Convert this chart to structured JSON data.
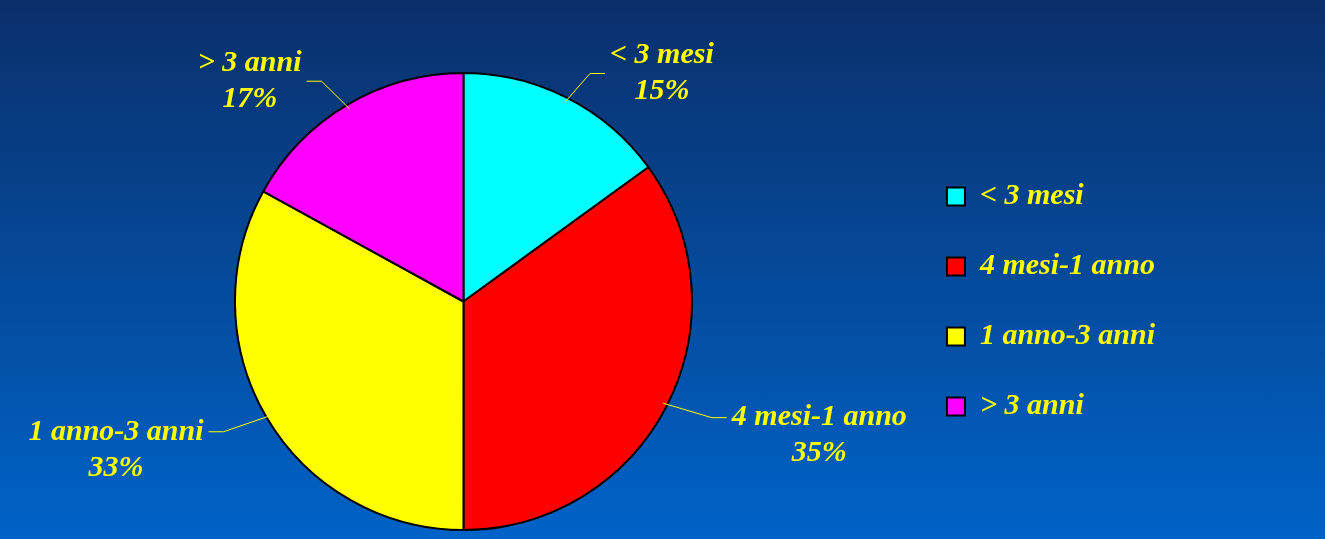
{
  "chart_data": {
    "type": "pie",
    "categories": [
      "< 3 mesi",
      "4 mesi-1 anno",
      "1 anno-3 anni",
      "> 3 anni"
    ],
    "values": [
      15,
      35,
      33,
      17
    ],
    "value_labels": [
      "15%",
      "35%",
      "33%",
      "17%"
    ],
    "colors": [
      "#00ffff",
      "#ff0000",
      "#ffff00",
      "#ff00ff"
    ],
    "legend": "right"
  }
}
